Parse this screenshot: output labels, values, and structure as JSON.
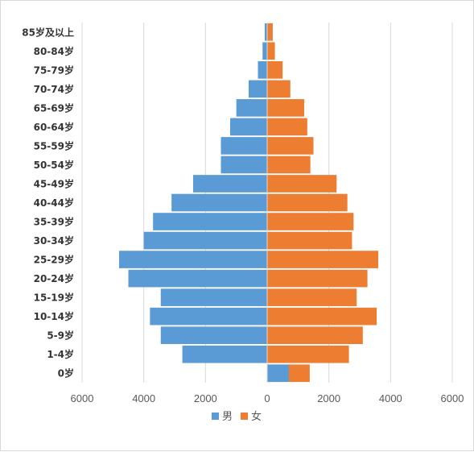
{
  "chart_data": {
    "type": "bar",
    "orientation": "horizontal",
    "subtype": "population-pyramid",
    "title": "",
    "xlabel": "",
    "ylabel": "",
    "categories": [
      "85岁及以上",
      "80-84岁",
      "75-79岁",
      "70-74岁",
      "65-69岁",
      "60-64岁",
      "55-59岁",
      "50-54岁",
      "45-49岁",
      "40-44岁",
      "35-39岁",
      "30-34岁",
      "25-29岁",
      "20-24岁",
      "15-19岁",
      "10-14岁",
      "5-9岁",
      "1-4岁",
      "0岁"
    ],
    "series": [
      {
        "name": "男",
        "color": "#5b9bd5",
        "direction": "left",
        "values": [
          80,
          150,
          300,
          600,
          1000,
          1200,
          1500,
          1500,
          2400,
          3100,
          3700,
          4000,
          4800,
          4500,
          3450,
          3800,
          3450,
          2750,
          0
        ]
      },
      {
        "name": "女",
        "color": "#ed7d31",
        "direction": "right",
        "values": [
          180,
          250,
          500,
          750,
          1200,
          1300,
          1500,
          1400,
          2250,
          2600,
          2800,
          2750,
          3600,
          3250,
          2900,
          3550,
          3100,
          2650,
          1380
        ]
      }
    ],
    "extra_segment": {
      "category": "0岁",
      "color": "#5b9bd5",
      "from": 0,
      "to": 700
    },
    "xlim": [
      -6000,
      6000
    ],
    "xticks": [
      -6000,
      -4000,
      -2000,
      0,
      2000,
      4000,
      6000
    ],
    "xtick_labels": [
      "6000",
      "4000",
      "2000",
      "0",
      "2000",
      "4000",
      "6000"
    ],
    "grid": true,
    "legend_position": "bottom"
  }
}
